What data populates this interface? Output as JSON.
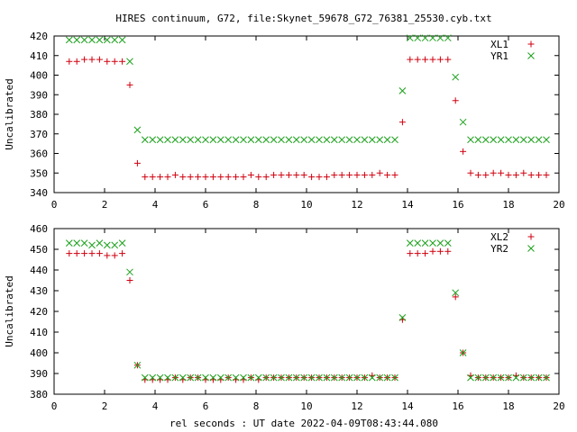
{
  "title": "HIRES continuum, G72, file:Skynet_59678_G72_76381_25530.cyb.txt",
  "xlabel": "rel seconds : UT date 2022-04-09T08:43:44.080",
  "colors": {
    "red": "#d0000f",
    "green": "#1aa01a"
  },
  "chart_data": [
    {
      "type": "scatter",
      "ylabel": "Uncalibrated",
      "xlim": [
        0,
        20
      ],
      "ylim": [
        340,
        420
      ],
      "xticks": [
        "0",
        "2",
        "4",
        "6",
        "8",
        "10",
        "12",
        "14",
        "16",
        "18",
        "20"
      ],
      "yticks": [
        "340",
        "350",
        "360",
        "370",
        "380",
        "390",
        "400",
        "410",
        "420"
      ],
      "legend": "top-right",
      "series": [
        {
          "name": "XL1",
          "marker": "plus",
          "color": "#d0000f",
          "x": [
            0.6,
            0.9,
            1.2,
            1.5,
            1.8,
            2.1,
            2.4,
            2.7,
            3.0,
            3.3,
            3.6,
            3.9,
            4.2,
            4.5,
            4.8,
            5.1,
            5.4,
            5.7,
            6.0,
            6.3,
            6.6,
            6.9,
            7.2,
            7.5,
            7.8,
            8.1,
            8.4,
            8.7,
            9.0,
            9.3,
            9.6,
            9.9,
            10.2,
            10.5,
            10.8,
            11.1,
            11.4,
            11.7,
            12.0,
            12.3,
            12.6,
            12.9,
            13.2,
            13.5,
            13.8,
            14.1,
            14.4,
            14.7,
            15.0,
            15.3,
            15.6,
            15.9,
            16.2,
            16.5,
            16.8,
            17.1,
            17.4,
            17.7,
            18.0,
            18.3,
            18.6,
            18.9,
            19.2,
            19.5
          ],
          "y": [
            407,
            407,
            408,
            408,
            408,
            407,
            407,
            407,
            395,
            355,
            348,
            348,
            348,
            348,
            349,
            348,
            348,
            348,
            348,
            348,
            348,
            348,
            348,
            348,
            349,
            348,
            348,
            349,
            349,
            349,
            349,
            349,
            348,
            348,
            348,
            349,
            349,
            349,
            349,
            349,
            349,
            350,
            349,
            349,
            376,
            408,
            408,
            408,
            408,
            408,
            408,
            387,
            361,
            350,
            349,
            349,
            350,
            350,
            349,
            349,
            350,
            349,
            349,
            349
          ]
        },
        {
          "name": "YR1",
          "marker": "cross",
          "color": "#1aa01a",
          "x": [
            0.6,
            0.9,
            1.2,
            1.5,
            1.8,
            2.1,
            2.4,
            2.7,
            3.0,
            3.3,
            3.6,
            3.9,
            4.2,
            4.5,
            4.8,
            5.1,
            5.4,
            5.7,
            6.0,
            6.3,
            6.6,
            6.9,
            7.2,
            7.5,
            7.8,
            8.1,
            8.4,
            8.7,
            9.0,
            9.3,
            9.6,
            9.9,
            10.2,
            10.5,
            10.8,
            11.1,
            11.4,
            11.7,
            12.0,
            12.3,
            12.6,
            12.9,
            13.2,
            13.5,
            13.8,
            14.1,
            14.4,
            14.7,
            15.0,
            15.3,
            15.6,
            15.9,
            16.2,
            16.5,
            16.8,
            17.1,
            17.4,
            17.7,
            18.0,
            18.3,
            18.6,
            18.9,
            19.2,
            19.5
          ],
          "y": [
            418,
            418,
            418,
            418,
            418,
            418,
            418,
            418,
            407,
            372,
            367,
            367,
            367,
            367,
            367,
            367,
            367,
            367,
            367,
            367,
            367,
            367,
            367,
            367,
            367,
            367,
            367,
            367,
            367,
            367,
            367,
            367,
            367,
            367,
            367,
            367,
            367,
            367,
            367,
            367,
            367,
            367,
            367,
            367,
            392,
            419,
            419,
            419,
            419,
            419,
            419,
            399,
            376,
            367,
            367,
            367,
            367,
            367,
            367,
            367,
            367,
            367,
            367,
            367
          ]
        }
      ]
    },
    {
      "type": "scatter",
      "ylabel": "Uncalibrated",
      "xlim": [
        0,
        20
      ],
      "ylim": [
        380,
        460
      ],
      "xticks": [
        "0",
        "2",
        "4",
        "6",
        "8",
        "10",
        "12",
        "14",
        "16",
        "18",
        "20"
      ],
      "yticks": [
        "380",
        "390",
        "400",
        "410",
        "420",
        "430",
        "440",
        "450",
        "460"
      ],
      "legend": "top-right",
      "series": [
        {
          "name": "XL2",
          "marker": "plus",
          "color": "#d0000f",
          "x": [
            0.6,
            0.9,
            1.2,
            1.5,
            1.8,
            2.1,
            2.4,
            2.7,
            3.0,
            3.3,
            3.6,
            3.9,
            4.2,
            4.5,
            4.8,
            5.1,
            5.4,
            5.7,
            6.0,
            6.3,
            6.6,
            6.9,
            7.2,
            7.5,
            7.8,
            8.1,
            8.4,
            8.7,
            9.0,
            9.3,
            9.6,
            9.9,
            10.2,
            10.5,
            10.8,
            11.1,
            11.4,
            11.7,
            12.0,
            12.3,
            12.6,
            12.9,
            13.2,
            13.5,
            13.8,
            14.1,
            14.4,
            14.7,
            15.0,
            15.3,
            15.6,
            15.9,
            16.2,
            16.5,
            16.8,
            17.1,
            17.4,
            17.7,
            18.0,
            18.3,
            18.6,
            18.9,
            19.2,
            19.5
          ],
          "y": [
            448,
            448,
            448,
            448,
            448,
            447,
            447,
            448,
            435,
            394,
            387,
            387,
            387,
            387,
            388,
            387,
            388,
            388,
            387,
            387,
            387,
            388,
            387,
            387,
            388,
            387,
            388,
            388,
            388,
            388,
            388,
            388,
            388,
            388,
            388,
            388,
            388,
            388,
            388,
            388,
            389,
            388,
            388,
            388,
            416,
            448,
            448,
            448,
            449,
            449,
            449,
            427,
            400,
            389,
            388,
            388,
            388,
            388,
            388,
            389,
            388,
            388,
            388,
            388
          ]
        },
        {
          "name": "YR2",
          "marker": "cross",
          "color": "#1aa01a",
          "x": [
            0.6,
            0.9,
            1.2,
            1.5,
            1.8,
            2.1,
            2.4,
            2.7,
            3.0,
            3.3,
            3.6,
            3.9,
            4.2,
            4.5,
            4.8,
            5.1,
            5.4,
            5.7,
            6.0,
            6.3,
            6.6,
            6.9,
            7.2,
            7.5,
            7.8,
            8.1,
            8.4,
            8.7,
            9.0,
            9.3,
            9.6,
            9.9,
            10.2,
            10.5,
            10.8,
            11.1,
            11.4,
            11.7,
            12.0,
            12.3,
            12.6,
            12.9,
            13.2,
            13.5,
            13.8,
            14.1,
            14.4,
            14.7,
            15.0,
            15.3,
            15.6,
            15.9,
            16.2,
            16.5,
            16.8,
            17.1,
            17.4,
            17.7,
            18.0,
            18.3,
            18.6,
            18.9,
            19.2,
            19.5
          ],
          "y": [
            453,
            453,
            453,
            452,
            453,
            452,
            452,
            453,
            439,
            394,
            388,
            388,
            388,
            388,
            388,
            388,
            388,
            388,
            388,
            388,
            388,
            388,
            388,
            388,
            388,
            388,
            388,
            388,
            388,
            388,
            388,
            388,
            388,
            388,
            388,
            388,
            388,
            388,
            388,
            388,
            388,
            388,
            388,
            388,
            417,
            453,
            453,
            453,
            453,
            453,
            453,
            429,
            400,
            388,
            388,
            388,
            388,
            388,
            388,
            388,
            388,
            388,
            388,
            388
          ]
        }
      ]
    }
  ]
}
